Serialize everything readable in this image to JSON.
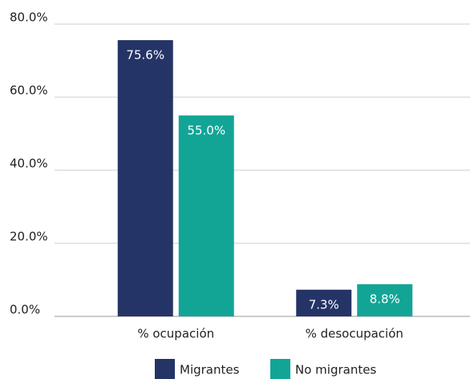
{
  "chart_data": {
    "type": "bar",
    "categories": [
      "% ocupación",
      "% desocupación"
    ],
    "series": [
      {
        "name": "Migrantes",
        "color": "#253466",
        "values": [
          75.6,
          7.3
        ],
        "value_labels": [
          "75.6%",
          "7.3%"
        ]
      },
      {
        "name": "No migrantes",
        "color": "#12a596",
        "values": [
          55,
          8.8
        ],
        "value_labels": [
          "55.0%",
          "8.8%"
        ]
      }
    ],
    "ylim": [
      0,
      80
    ],
    "yticks": [
      {
        "value": 0,
        "label": "0.0%"
      },
      {
        "value": 20,
        "label": "20.0%"
      },
      {
        "value": 40,
        "label": "40.0%"
      },
      {
        "value": 60,
        "label": "60.0%"
      },
      {
        "value": 80,
        "label": "80.0%"
      }
    ],
    "grid": true,
    "legend": "bottom"
  }
}
